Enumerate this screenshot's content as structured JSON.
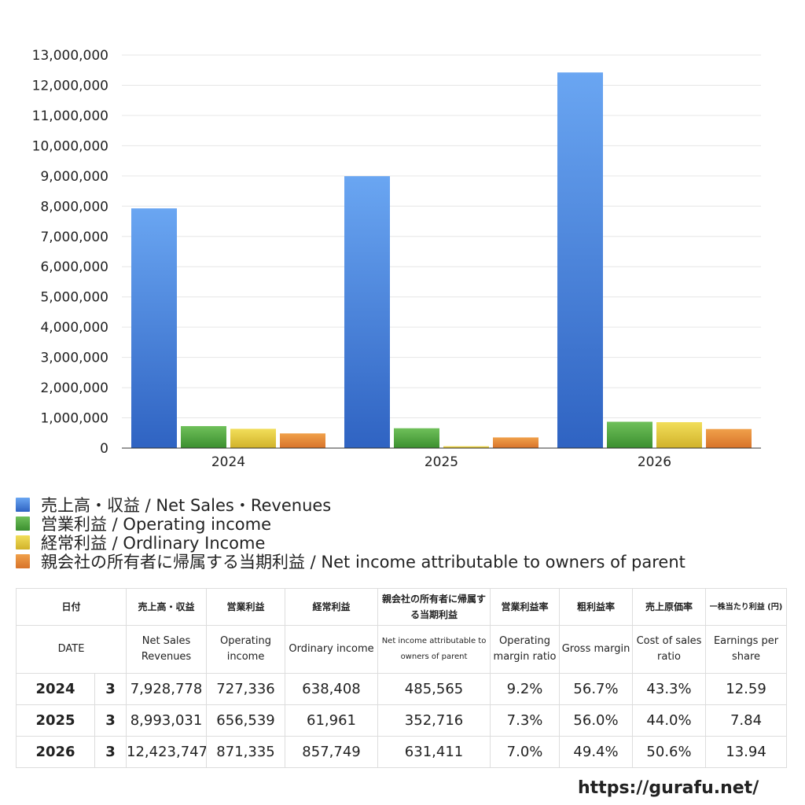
{
  "chart_data": {
    "type": "bar",
    "categories": [
      "2024",
      "2025",
      "2026"
    ],
    "series": [
      {
        "name": "売上高・収益 / Net Sales・Revenues",
        "values": [
          7928778,
          8993031,
          12423747
        ],
        "color_top": "#6aa6f2",
        "color_bottom": "#2f63c2"
      },
      {
        "name": "営業利益 / Operating income",
        "values": [
          727336,
          656539,
          871335
        ],
        "color_top": "#6fc05a",
        "color_bottom": "#3b8f2f"
      },
      {
        "name": "経常利益 / Ordlinary Income",
        "values": [
          638408,
          61961,
          857749
        ],
        "color_top": "#f2de5a",
        "color_bottom": "#d1b22a"
      },
      {
        "name": "親会社の所有者に帰属する当期利益 / Net income attributable to owners of parent",
        "values": [
          485565,
          352716,
          631411
        ],
        "color_top": "#f0a04a",
        "color_bottom": "#d8732a"
      }
    ],
    "yticks": [
      "0",
      "1,000,000",
      "2,000,000",
      "3,000,000",
      "4,000,000",
      "5,000,000",
      "6,000,000",
      "7,000,000",
      "8,000,000",
      "9,000,000",
      "10,000,000",
      "11,000,000",
      "12,000,000",
      "13,000,000"
    ],
    "ylim": [
      0,
      13000000
    ],
    "grid": true,
    "legend_position": "bottom-left"
  },
  "table": {
    "headers_jp": [
      "日付",
      "売上高・収益",
      "営業利益",
      "経常利益",
      "親会社の所有者に帰属する当期利益",
      "営業利益率",
      "粗利益率",
      "売上原価率",
      "一株当たり利益 (円)"
    ],
    "headers_en": [
      "DATE",
      "Net Sales Revenues",
      "Operating income",
      "Ordinary income",
      "Net income attributable to owners of parent",
      "Operating margin ratio",
      "Gross margin",
      "Cost of sales ratio",
      "Earnings per share"
    ],
    "rows": [
      {
        "year": "2024",
        "month": "3",
        "sales": "7,928,778",
        "op": "727,336",
        "ord": "638,408",
        "net": "485,565",
        "opm": "9.2%",
        "gm": "56.7%",
        "cos": "43.3%",
        "eps": "12.59"
      },
      {
        "year": "2025",
        "month": "3",
        "sales": "8,993,031",
        "op": "656,539",
        "ord": "61,961",
        "net": "352,716",
        "opm": "7.3%",
        "gm": "56.0%",
        "cos": "44.0%",
        "eps": "7.84"
      },
      {
        "year": "2026",
        "month": "3",
        "sales": "12,423,747",
        "op": "871,335",
        "ord": "857,749",
        "net": "631,411",
        "opm": "7.0%",
        "gm": "49.4%",
        "cos": "50.6%",
        "eps": "13.94"
      }
    ]
  },
  "footer": {
    "url": "https://gurafu.net/"
  }
}
